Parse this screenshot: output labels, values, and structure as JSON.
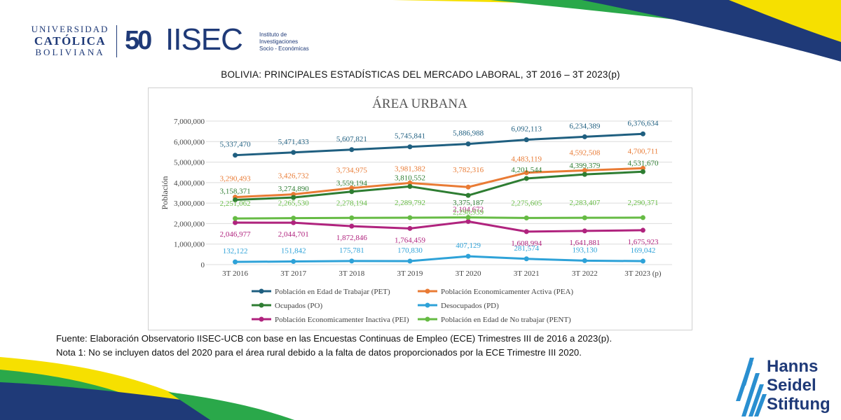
{
  "header": {
    "ucb_logo": [
      "UNIVERSIDAD",
      "CATÓLICA",
      "BOLIVIANA"
    ],
    "iisec_logo": {
      "number": "50",
      "name": "IISEC",
      "institute_lines": [
        "Instituto de",
        "Investigaciones",
        "Socio - Económicas"
      ]
    },
    "title": "BOLIVIA: PRINCIPALES ESTADÍSTICAS DEL MERCADO LABORAL, 3T 2016 – 3T 2023(p)"
  },
  "chart_data": {
    "type": "line",
    "title": "ÁREA URBANA",
    "xlabel": "",
    "ylabel": "Población",
    "ylim": [
      0,
      7000000
    ],
    "yticks": [
      0,
      1000000,
      2000000,
      3000000,
      4000000,
      5000000,
      6000000,
      7000000
    ],
    "ytick_labels": [
      "0",
      "1,000,000",
      "2,000,000",
      "3,000,000",
      "4,000,000",
      "5,000,000",
      "6,000,000",
      "7,000,000"
    ],
    "grid": true,
    "legend_position": "bottom",
    "categories": [
      "3T 2016",
      "3T 2017",
      "3T 2018",
      "3T 2019",
      "3T 2020",
      "3T 2021",
      "3T 2022",
      "3T 2023 (p)"
    ],
    "series": [
      {
        "name": "Población en Edad de Trabajar (PET)",
        "color": "#1f5f80",
        "values": [
          5337470,
          5471433,
          5607821,
          5745841,
          5886988,
          6092113,
          6234389,
          6376634
        ],
        "labels": [
          "5,337,470",
          "5,471,433",
          "5,607,821",
          "5,745,841",
          "5,886,988",
          "6,092,113",
          "6,234,389",
          "6,376,634"
        ]
      },
      {
        "name": "Población Economicamenter Activa (PEA)",
        "color": "#e97b35",
        "values": [
          3290493,
          3426732,
          3734975,
          3981382,
          3782316,
          4483119,
          4592508,
          4700711
        ],
        "labels": [
          "3,290,493",
          "3,426,732",
          "3,734,975",
          "3,981,382",
          "3,782,316",
          "4,483,119",
          "4,592,508",
          "4,700,711"
        ]
      },
      {
        "name": "Ocupados (PO)",
        "color": "#2e7d32",
        "values": [
          3158371,
          3274890,
          3559194,
          3810552,
          3375187,
          4201544,
          4399379,
          4531670
        ],
        "labels": [
          "3,158,371",
          "3,274,890",
          "3,559,194",
          "3,810,552",
          "3,375,187",
          "4,201,544",
          "4,399,379",
          "4,531,670"
        ]
      },
      {
        "name": "Desocupados (PD)",
        "color": "#2ea2d8",
        "values": [
          132122,
          151842,
          175781,
          170830,
          407129,
          281574,
          193130,
          169042
        ],
        "labels": [
          "132,122",
          "151,842",
          "175,781",
          "170,830",
          "407,129",
          "281,574",
          "193,130",
          "169,042"
        ]
      },
      {
        "name": "Población Economicamenter Inactiva (PEI)",
        "color": "#b0237e",
        "values": [
          2046977,
          2044701,
          1872846,
          1764459,
          2104672,
          1608994,
          1641881,
          1675923
        ],
        "labels": [
          "2,046,977",
          "2,044,701",
          "1,872,846",
          "1,764,459",
          "2,104,672",
          "1,608,994",
          "1,641,881",
          "1,675,923"
        ]
      },
      {
        "name": "Población en Edad de No trabajar (PENT)",
        "color": "#66bb44",
        "values": [
          2251062,
          2265530,
          2278194,
          2289792,
          2298939,
          2275605,
          2283407,
          2290371
        ],
        "labels": [
          "2,251,062",
          "2,265,530",
          "2,278,194",
          "2,289,792",
          "2,298,939",
          "2,275,605",
          "2,283,407",
          "2,290,371"
        ]
      }
    ]
  },
  "footer": {
    "source": "Fuente: Elaboración Observatorio IISEC-UCB con base en las Encuestas Continuas de Empleo (ECE) Trimestres III de 2016 a 2023(p).",
    "note": "Nota 1: No se incluyen datos del 2020 para el área rural debido a la falta de datos proporcionados por la ECE Trimestre III 2020."
  },
  "sponsor": {
    "lines": [
      "Hanns",
      "Seidel",
      "Stiftung"
    ]
  },
  "colors": {
    "navy": "#1f3a78",
    "yellow": "#f6e000",
    "green": "#2aa84a",
    "teal": "#2aa8a0"
  }
}
